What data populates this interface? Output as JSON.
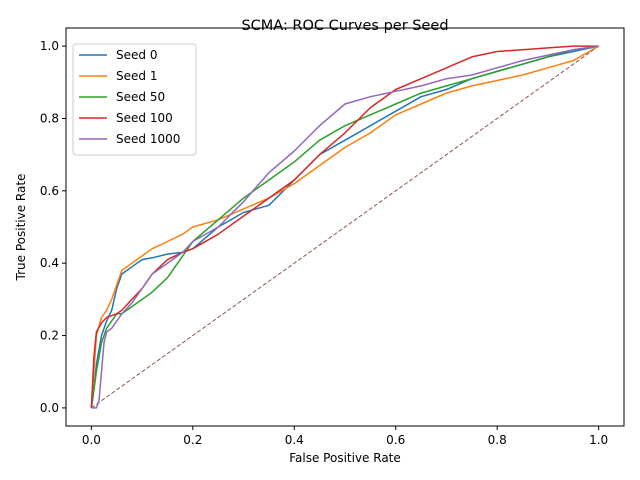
{
  "chart_data": {
    "type": "line",
    "title": "SCMA: ROC Curves per Seed",
    "xlabel": "False Positive Rate",
    "ylabel": "True Positive Rate",
    "xlim": [
      -0.05,
      1.05
    ],
    "ylim": [
      -0.05,
      1.05
    ],
    "xticks": [
      "0.0",
      "0.2",
      "0.4",
      "0.6",
      "0.8",
      "1.0"
    ],
    "yticks": [
      "0.0",
      "0.2",
      "0.4",
      "0.6",
      "0.8",
      "1.0"
    ],
    "grid": false,
    "legend_placement": "upper-left",
    "reference_line": {
      "x": [
        0,
        1
      ],
      "y": [
        0,
        1
      ],
      "color": "#8c564b",
      "style": "dashed"
    },
    "series": [
      {
        "name": "Seed 0",
        "color": "#1f77b4",
        "x": [
          0,
          0.005,
          0.01,
          0.02,
          0.03,
          0.04,
          0.05,
          0.06,
          0.08,
          0.1,
          0.12,
          0.15,
          0.18,
          0.2,
          0.25,
          0.3,
          0.35,
          0.4,
          0.45,
          0.5,
          0.55,
          0.6,
          0.65,
          0.7,
          0.75,
          0.8,
          0.85,
          0.9,
          0.95,
          1.0
        ],
        "y": [
          0,
          0.05,
          0.12,
          0.2,
          0.24,
          0.27,
          0.33,
          0.37,
          0.39,
          0.41,
          0.415,
          0.425,
          0.43,
          0.44,
          0.5,
          0.54,
          0.56,
          0.63,
          0.7,
          0.74,
          0.78,
          0.82,
          0.86,
          0.88,
          0.91,
          0.93,
          0.95,
          0.97,
          0.985,
          1.0
        ]
      },
      {
        "name": "Seed 1",
        "color": "#ff7f0e",
        "x": [
          0,
          0.005,
          0.01,
          0.02,
          0.03,
          0.04,
          0.05,
          0.06,
          0.08,
          0.1,
          0.12,
          0.15,
          0.18,
          0.2,
          0.25,
          0.3,
          0.35,
          0.4,
          0.45,
          0.5,
          0.55,
          0.6,
          0.65,
          0.7,
          0.75,
          0.8,
          0.85,
          0.9,
          0.95,
          1.0
        ],
        "y": [
          0,
          0.1,
          0.2,
          0.25,
          0.27,
          0.3,
          0.34,
          0.38,
          0.4,
          0.42,
          0.44,
          0.46,
          0.48,
          0.5,
          0.52,
          0.55,
          0.58,
          0.62,
          0.67,
          0.72,
          0.76,
          0.81,
          0.84,
          0.87,
          0.89,
          0.905,
          0.92,
          0.94,
          0.96,
          1.0
        ]
      },
      {
        "name": "Seed 50",
        "color": "#2ca02c",
        "x": [
          0,
          0.005,
          0.01,
          0.02,
          0.03,
          0.04,
          0.05,
          0.06,
          0.08,
          0.1,
          0.12,
          0.15,
          0.17,
          0.2,
          0.25,
          0.3,
          0.35,
          0.4,
          0.45,
          0.5,
          0.55,
          0.6,
          0.65,
          0.7,
          0.75,
          0.8,
          0.85,
          0.9,
          0.95,
          1.0
        ],
        "y": [
          0,
          0.05,
          0.1,
          0.18,
          0.22,
          0.24,
          0.26,
          0.26,
          0.28,
          0.3,
          0.32,
          0.36,
          0.4,
          0.46,
          0.52,
          0.58,
          0.63,
          0.68,
          0.74,
          0.78,
          0.81,
          0.84,
          0.87,
          0.89,
          0.91,
          0.93,
          0.95,
          0.97,
          0.99,
          1.0
        ]
      },
      {
        "name": "Seed 100",
        "color": "#d62728",
        "x": [
          0,
          0.005,
          0.01,
          0.02,
          0.03,
          0.04,
          0.05,
          0.06,
          0.08,
          0.1,
          0.12,
          0.15,
          0.18,
          0.2,
          0.25,
          0.3,
          0.35,
          0.4,
          0.45,
          0.5,
          0.55,
          0.6,
          0.65,
          0.7,
          0.75,
          0.8,
          0.85,
          0.9,
          0.95,
          1.0
        ],
        "y": [
          0,
          0.14,
          0.21,
          0.235,
          0.25,
          0.255,
          0.26,
          0.27,
          0.3,
          0.33,
          0.37,
          0.41,
          0.43,
          0.44,
          0.48,
          0.53,
          0.58,
          0.63,
          0.7,
          0.76,
          0.83,
          0.88,
          0.91,
          0.94,
          0.97,
          0.985,
          0.99,
          0.995,
          1.0,
          1.0
        ]
      },
      {
        "name": "Seed 1000",
        "color": "#9467bd",
        "x": [
          0,
          0.005,
          0.01,
          0.015,
          0.02,
          0.025,
          0.03,
          0.04,
          0.05,
          0.06,
          0.08,
          0.1,
          0.12,
          0.15,
          0.18,
          0.2,
          0.25,
          0.3,
          0.35,
          0.4,
          0.45,
          0.5,
          0.55,
          0.6,
          0.65,
          0.7,
          0.75,
          0.8,
          0.85,
          0.9,
          0.95,
          1.0
        ],
        "y": [
          0,
          0,
          0,
          0.02,
          0.1,
          0.18,
          0.21,
          0.22,
          0.24,
          0.26,
          0.29,
          0.33,
          0.37,
          0.4,
          0.43,
          0.46,
          0.5,
          0.57,
          0.65,
          0.71,
          0.78,
          0.84,
          0.86,
          0.875,
          0.89,
          0.91,
          0.92,
          0.94,
          0.96,
          0.975,
          0.99,
          1.0
        ]
      }
    ]
  }
}
